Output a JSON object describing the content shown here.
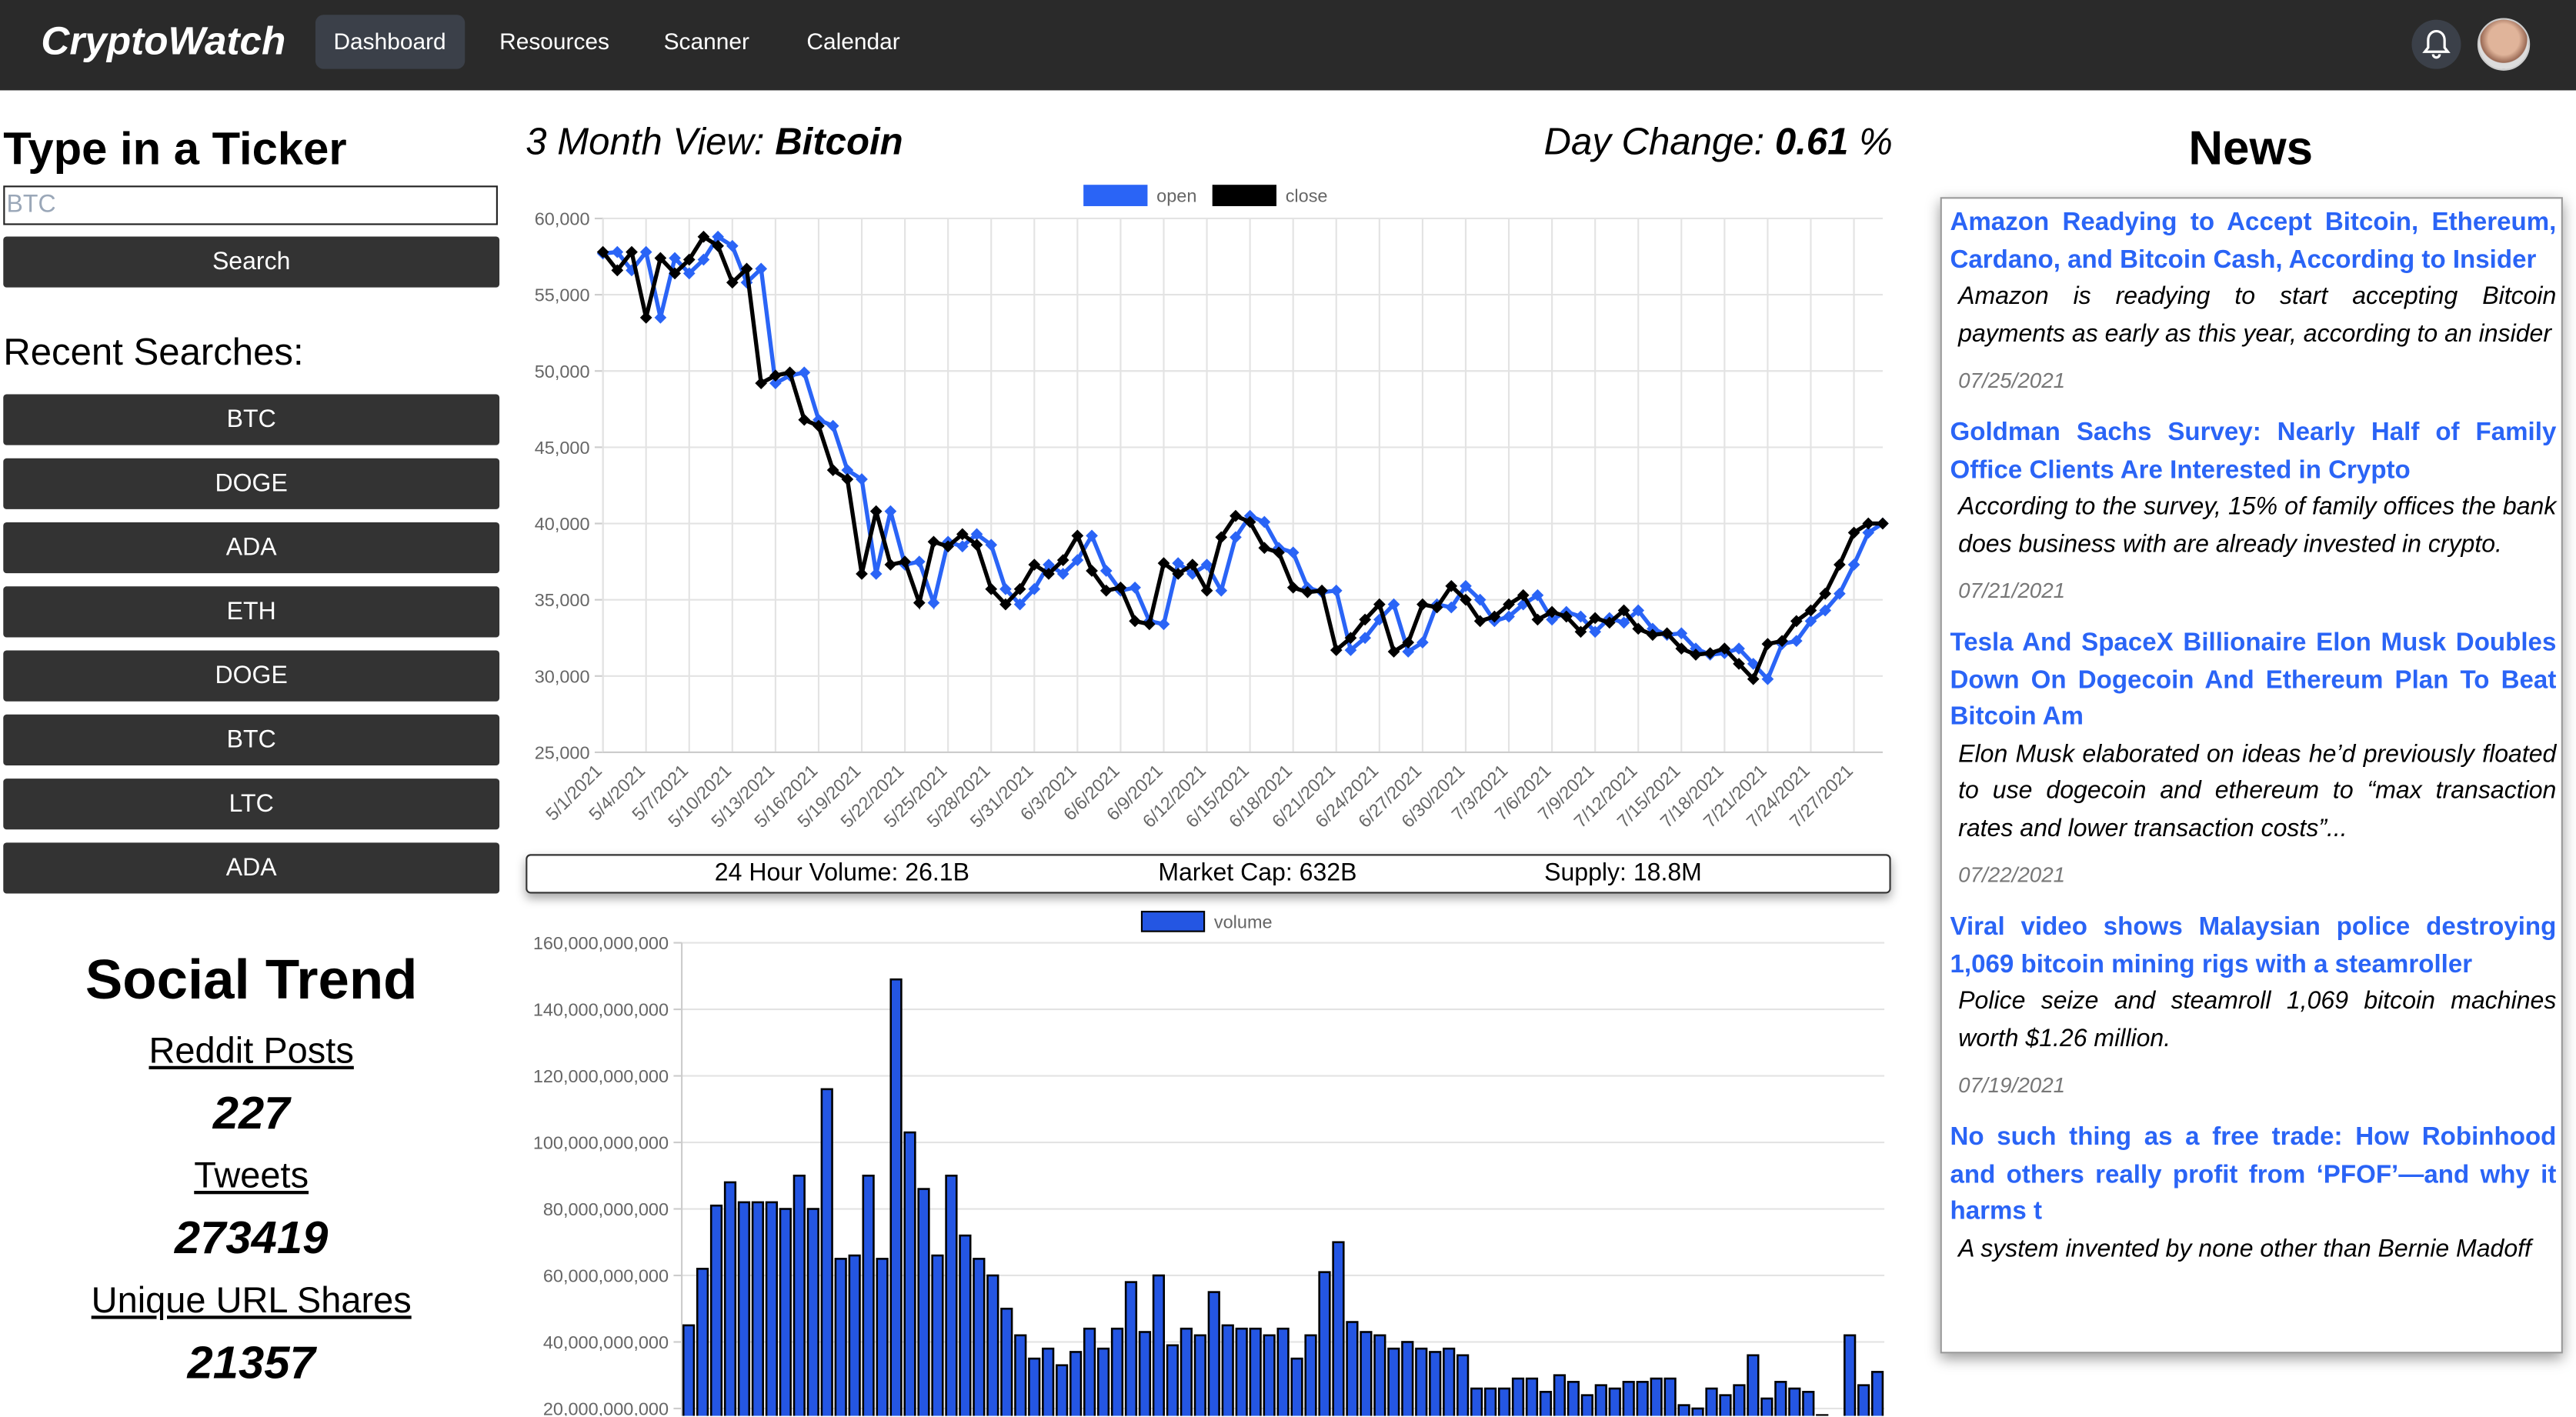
{
  "nav": {
    "brand": "CryptoWatch",
    "links": [
      "Dashboard",
      "Resources",
      "Scanner",
      "Calendar"
    ]
  },
  "ticker": {
    "title": "Type in a Ticker",
    "placeholder": "BTC",
    "button": "Search"
  },
  "recent": {
    "title": "Recent Searches:",
    "items": [
      "BTC",
      "DOGE",
      "ADA",
      "ETH",
      "DOGE",
      "BTC",
      "LTC",
      "ADA"
    ]
  },
  "social": {
    "title": "Social Trend",
    "stats": [
      {
        "label": "Reddit Posts",
        "value": 227
      },
      {
        "label": "Tweets",
        "value": 273419
      },
      {
        "label": "Unique URL Shares",
        "value": 21357
      }
    ]
  },
  "header": {
    "view_label": "3 Month View:",
    "coin": "Bitcoin",
    "change_label": "Day Change:",
    "change": 0.61,
    "change_unit": "%"
  },
  "stats_bar": [
    "24 Hour Volume: 26.1B",
    "Market Cap: 632B",
    "Supply: 18.8M"
  ],
  "news": {
    "title": "News",
    "items": [
      {
        "title": "Amazon Readying to Accept Bitcoin, Ethereum, Cardano, and Bitcoin Cash, According to Insider",
        "description": "Amazon is readying to start accepting Bitcoin payments as early as this year, according to an insider",
        "date": "07/25/2021"
      },
      {
        "title": "Goldman Sachs Survey: Nearly Half of Family Office Clients Are Interested in Crypto",
        "description": "According to the survey, 15% of family offices the bank does business with are already invested in crypto.",
        "date": "07/21/2021"
      },
      {
        "title": "Tesla And SpaceX Billionaire Elon Musk Doubles Down On Dogecoin And Ethereum Plan To Beat Bitcoin Am",
        "description": "Elon Musk elaborated on ideas he’d previously floated to use dogecoin and ethereum to “max transaction rates and lower transaction costs”...",
        "date": "07/22/2021"
      },
      {
        "title": "Viral video shows Malaysian police destroying 1,069 bitcoin mining rigs with a steamroller",
        "description": "Police seize and steamroll 1,069 bitcoin machines worth $1.26 million.",
        "date": "07/19/2021"
      },
      {
        "title": "No such thing as a free trade: How Robinhood and others really profit from ‘PFOF’—and why it harms t",
        "description": "A system invented by none other than Bernie Madoff"
      }
    ]
  },
  "chart_data": [
    {
      "type": "line",
      "categories": [
        "5/1/2021",
        null,
        null,
        "5/4/2021",
        null,
        null,
        "5/7/2021",
        null,
        null,
        "5/10/2021",
        null,
        null,
        "5/13/2021",
        null,
        null,
        "5/16/2021",
        null,
        null,
        "5/19/2021",
        null,
        null,
        "5/22/2021",
        null,
        null,
        "5/25/2021",
        null,
        null,
        "5/28/2021",
        null,
        null,
        "5/31/2021",
        null,
        null,
        "6/3/2021",
        null,
        null,
        "6/6/2021",
        null,
        null,
        "6/9/2021",
        null,
        null,
        "6/12/2021",
        null,
        null,
        "6/15/2021",
        null,
        null,
        "6/18/2021",
        null,
        null,
        "6/21/2021",
        null,
        null,
        "6/24/2021",
        null,
        null,
        "6/27/2021",
        null,
        null,
        "6/30/2021",
        null,
        null,
        "7/3/2021",
        null,
        null,
        "7/6/2021",
        null,
        null,
        "7/9/2021",
        null,
        null,
        "7/12/2021",
        null,
        null,
        "7/15/2021",
        null,
        null,
        "7/18/2021",
        null,
        null,
        "7/21/2021",
        null,
        null,
        "7/24/2021",
        null,
        null,
        "7/27/2021",
        null,
        null
      ],
      "series": [
        {
          "name": "open",
          "color": "#2a64f6",
          "values": [
            57700,
            57800,
            56600,
            57800,
            53500,
            57400,
            56400,
            57300,
            58800,
            58200,
            55800,
            56700,
            49200,
            49700,
            49900,
            46800,
            46400,
            43500,
            42900,
            36700,
            40800,
            37300,
            37500,
            34800,
            38800,
            38500,
            39300,
            38600,
            35700,
            34700,
            35700,
            37300,
            36700,
            37600,
            39200,
            36900,
            35600,
            35800,
            33600,
            33400,
            37400,
            36700,
            37300,
            35600,
            39100,
            40500,
            40100,
            38400,
            38100,
            35800,
            35500,
            35600,
            31700,
            32500,
            33700,
            34700,
            31600,
            32200,
            34700,
            34500,
            35900,
            35000,
            33600,
            33900,
            34700,
            35300,
            33700,
            34200,
            33900,
            32900,
            33800,
            33500,
            34300,
            33100,
            32700,
            32800,
            31800,
            31400,
            31500,
            31800,
            30800,
            29800,
            32100,
            32300,
            33600,
            34300,
            35400,
            37300,
            39400,
            40000
          ]
        },
        {
          "name": "close",
          "color": "#000000",
          "values": [
            57800,
            56600,
            57800,
            53500,
            57400,
            56400,
            57300,
            58800,
            58200,
            55800,
            56700,
            49200,
            49700,
            49900,
            46800,
            46400,
            43500,
            42900,
            36700,
            40800,
            37300,
            37500,
            34800,
            38800,
            38500,
            39300,
            38600,
            35700,
            34700,
            35700,
            37300,
            36700,
            37600,
            39200,
            36900,
            35600,
            35800,
            33600,
            33400,
            37400,
            36700,
            37300,
            35600,
            39100,
            40500,
            40100,
            38400,
            38100,
            35800,
            35500,
            35600,
            31700,
            32500,
            33700,
            34700,
            31600,
            32200,
            34700,
            34500,
            35900,
            35000,
            33600,
            33900,
            34700,
            35300,
            33700,
            34200,
            33900,
            32900,
            33800,
            33500,
            34300,
            33100,
            32700,
            32800,
            31800,
            31400,
            31500,
            31800,
            30800,
            29800,
            32100,
            32300,
            33600,
            34300,
            35400,
            37300,
            39400,
            40000,
            40000
          ]
        }
      ],
      "ylim": [
        25000,
        60000
      ],
      "yticks": [
        {
          "value": 25000,
          "label": "25,000"
        },
        {
          "value": 30000,
          "label": "30,000"
        },
        {
          "value": 35000,
          "label": "35,000"
        },
        {
          "value": 40000,
          "label": "40,000"
        },
        {
          "value": 45000,
          "label": "45,000"
        },
        {
          "value": 50000,
          "label": "50,000"
        },
        {
          "value": 55000,
          "label": "55,000"
        },
        {
          "value": 60000,
          "label": "60,000"
        }
      ],
      "grid": true,
      "legend": "top"
    },
    {
      "type": "bar",
      "series": [
        {
          "name": "volume",
          "color": "#2456e3",
          "values": [
            45000000000,
            62000000000,
            81000000000,
            88000000000,
            82000000000,
            82000000000,
            82000000000,
            80000000000,
            90000000000,
            80000000000,
            116000000000,
            65000000000,
            66000000000,
            90000000000,
            65000000000,
            149000000000,
            103000000000,
            86000000000,
            66000000000,
            90000000000,
            72000000000,
            65000000000,
            60000000000,
            50000000000,
            42000000000,
            35000000000,
            38000000000,
            33000000000,
            37000000000,
            44000000000,
            38000000000,
            44000000000,
            58000000000,
            43000000000,
            60000000000,
            39000000000,
            44000000000,
            42000000000,
            55000000000,
            45000000000,
            44000000000,
            44000000000,
            42000000000,
            44000000000,
            35000000000,
            42000000000,
            61000000000,
            70000000000,
            46000000000,
            43000000000,
            42000000000,
            38000000000,
            40000000000,
            38000000000,
            37000000000,
            38000000000,
            36000000000,
            26000000000,
            26000000000,
            26000000000,
            29000000000,
            29000000000,
            25000000000,
            30000000000,
            28000000000,
            24000000000,
            27000000000,
            26000000000,
            28000000000,
            28000000000,
            29000000000,
            29000000000,
            21000000000,
            20000000000,
            26000000000,
            24000000000,
            27000000000,
            36000000000,
            23000000000,
            28000000000,
            26000000000,
            25000000000,
            18000000000,
            17000000000,
            42000000000,
            27000000000,
            31000000000
          ]
        }
      ],
      "ylim": [
        0,
        160000000000
      ],
      "yticks": [
        {
          "value": 20000000000,
          "label": "20,000,000,000"
        },
        {
          "value": 40000000000,
          "label": "40,000,000,000"
        },
        {
          "value": 60000000000,
          "label": "60,000,000,000"
        },
        {
          "value": 80000000000,
          "label": "80,000,000,000"
        },
        {
          "value": 100000000000,
          "label": "100,000,000,000"
        },
        {
          "value": 120000000000,
          "label": "120,000,000,000"
        },
        {
          "value": 140000000000,
          "label": "140,000,000,000"
        },
        {
          "value": 160000000000,
          "label": "160,000,000,000"
        }
      ],
      "grid": true,
      "legend": "top"
    }
  ]
}
